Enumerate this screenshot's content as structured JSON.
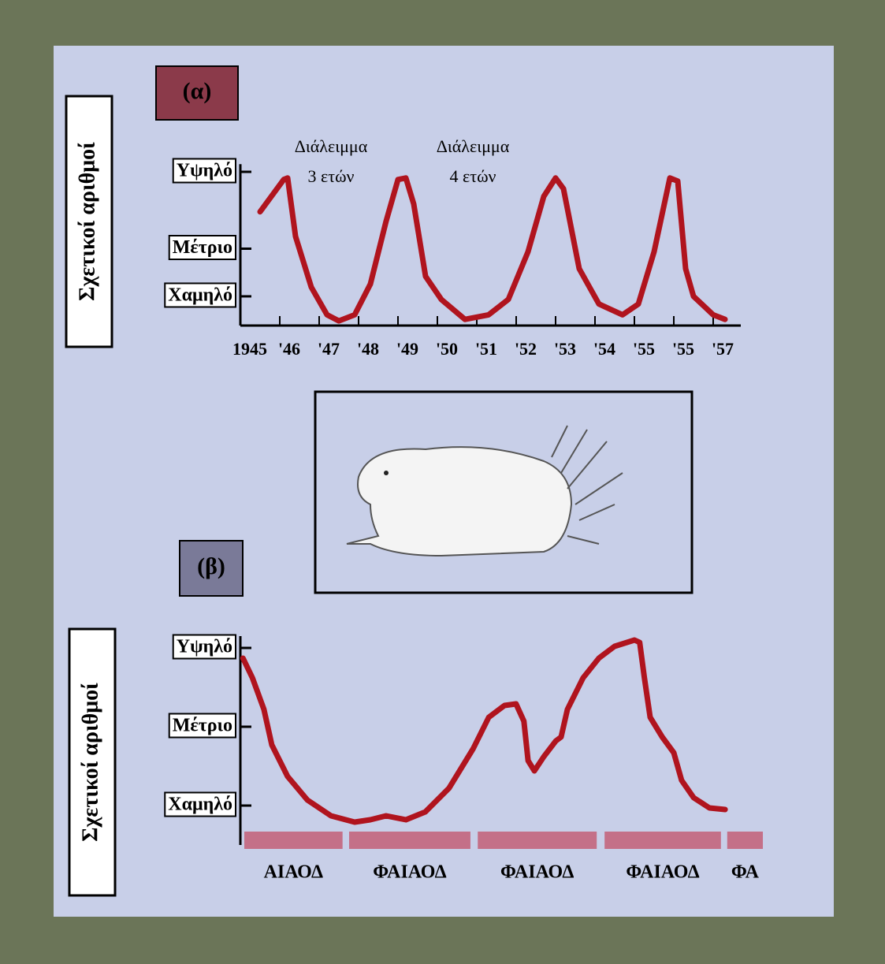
{
  "chart_data": [
    {
      "type": "line",
      "title": "(α)",
      "ylabel": "Σχετικοί αριθμοί",
      "color": "#b0141e",
      "annotations": [
        [
          "Διάλειμμα",
          "3 ετών"
        ],
        [
          "Διάλειμμα",
          "4 ετών"
        ]
      ],
      "x": [
        0.5,
        1.1,
        1.2,
        1.4,
        1.8,
        2.2,
        2.5,
        2.9,
        3.3,
        3.7,
        4.0,
        4.2,
        4.4,
        4.7,
        5.1,
        5.7,
        6.3,
        6.8,
        7.3,
        7.7,
        8.0,
        8.2,
        8.6,
        9.1,
        9.7,
        10.1,
        10.5,
        10.9,
        11.1,
        11.3,
        11.5,
        12.0,
        12.3
      ],
      "values": [
        7.4,
        9.5,
        9.6,
        5.8,
        2.5,
        0.7,
        0.3,
        0.7,
        2.7,
        6.8,
        9.5,
        9.6,
        7.9,
        3.2,
        1.7,
        0.4,
        0.7,
        1.7,
        4.8,
        8.4,
        9.6,
        8.9,
        3.7,
        1.4,
        0.7,
        1.4,
        4.8,
        9.6,
        9.4,
        3.7,
        1.9,
        0.7,
        0.4
      ],
      "xlim": [
        0,
        12.7
      ],
      "xticks": [
        {
          "value": 0,
          "label": "1945"
        },
        {
          "value": 1,
          "label": "'46"
        },
        {
          "value": 2,
          "label": "'47"
        },
        {
          "value": 3,
          "label": "'48"
        },
        {
          "value": 4,
          "label": "'49"
        },
        {
          "value": 5,
          "label": "'50"
        },
        {
          "value": 6,
          "label": "'51"
        },
        {
          "value": 7,
          "label": "'52"
        },
        {
          "value": 8,
          "label": "'53"
        },
        {
          "value": 9,
          "label": "'54"
        },
        {
          "value": 10,
          "label": "'55"
        },
        {
          "value": 11,
          "label": "'55"
        },
        {
          "value": 12,
          "label": "'57"
        }
      ],
      "ylim": [
        0,
        10.5
      ],
      "yticks": [
        {
          "value": 1.9,
          "label": "Χαμηλό"
        },
        {
          "value": 5,
          "label": "Μέτριο"
        },
        {
          "value": 10,
          "label": "Υψηλό"
        }
      ]
    },
    {
      "type": "line",
      "title": "(β)",
      "ylabel": "Σχετικοί αριθμοί",
      "color": "#b0141e",
      "x": [
        0.5,
        2.3,
        4.5,
        6.0,
        9.0,
        12.8,
        17.3,
        21.8,
        24.8,
        27.8,
        31.6,
        35.3,
        39.8,
        44.4,
        47.4,
        50.4,
        52.6,
        54.1,
        54.9,
        56.1,
        57.9,
        60.2,
        61.2,
        62.4,
        65.4,
        68.4,
        71.4,
        75.2,
        76.2,
        77.1,
        78.2,
        80.5,
        82.7,
        84.2,
        86.5,
        89.5,
        92.5
      ],
      "values": [
        2.87,
        2.62,
        2.22,
        1.77,
        1.37,
        1.07,
        0.87,
        0.79,
        0.82,
        0.87,
        0.82,
        0.92,
        1.22,
        1.72,
        2.12,
        2.27,
        2.29,
        2.07,
        1.57,
        1.44,
        1.62,
        1.82,
        1.87,
        2.22,
        2.62,
        2.87,
        3.02,
        3.1,
        3.07,
        2.62,
        2.12,
        1.87,
        1.67,
        1.32,
        1.1,
        0.97,
        0.95
      ],
      "xlim": [
        0,
        100
      ],
      "ylim": [
        0.5,
        3.15
      ],
      "yticks": [
        {
          "value": 1,
          "label": "Χαμηλό"
        },
        {
          "value": 2,
          "label": "Μέτριο"
        },
        {
          "value": 3,
          "label": "Υψηλό"
        }
      ],
      "periods": [
        {
          "label": "ΑΙΑΟΔ",
          "start": 0.75,
          "end": 19.5
        },
        {
          "label": "ΦΑΙΑΟΔ",
          "start": 20.75,
          "end": 43.9
        },
        {
          "label": "ΦΑΙΑΟΔ",
          "start": 45.3,
          "end": 68.0
        },
        {
          "label": "ΦΑΙΑΟΔ",
          "start": 69.5,
          "end": 91.7
        },
        {
          "label": "ΦΑ",
          "start": 92.9,
          "end": 99.7
        }
      ],
      "period_color": "#c47088"
    }
  ]
}
